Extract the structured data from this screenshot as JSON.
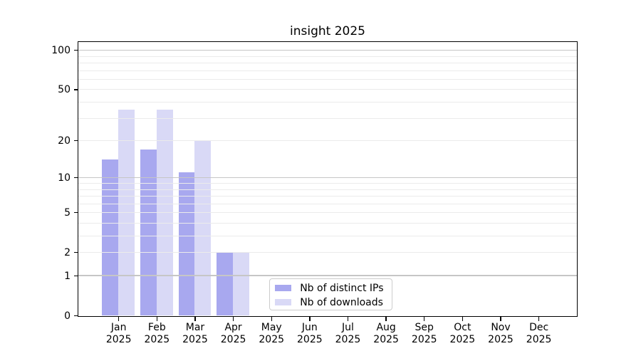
{
  "chart_data": {
    "type": "bar",
    "title": "insight 2025",
    "months": [
      "Jan",
      "Feb",
      "Mar",
      "Apr",
      "May",
      "Jun",
      "Jul",
      "Aug",
      "Sep",
      "Oct",
      "Nov",
      "Dec"
    ],
    "year_label": "2025",
    "series": [
      {
        "name": "Nb of distinct IPs",
        "color": "#a8a8ef",
        "values": [
          14,
          17,
          11,
          2,
          0,
          0,
          0,
          0,
          0,
          0,
          0,
          0
        ]
      },
      {
        "name": "Nb of downloads",
        "color": "#d9d9f6",
        "values": [
          35,
          35,
          20,
          2,
          0,
          0,
          0,
          0,
          0,
          0,
          0,
          0
        ]
      }
    ],
    "yscale": "log10(value+1)",
    "ylim": [
      0,
      115
    ],
    "y_tick_labels": [
      0,
      1,
      2,
      5,
      10,
      20,
      50,
      100
    ],
    "y_major_gridlines": [
      1,
      10,
      100
    ],
    "y_minor_gridlines": [
      2,
      3,
      4,
      5,
      6,
      7,
      8,
      9,
      20,
      30,
      40,
      50,
      60,
      70,
      80,
      90
    ],
    "legend": {
      "entries": [
        "Nb of distinct IPs",
        "Nb of downloads"
      ],
      "location": "inside-lower-center"
    },
    "grid": "on",
    "colors": {
      "bar_distinct_ips": "#a8a8ef",
      "bar_downloads": "#d9d9f6",
      "grid_major": "#c6c6c6",
      "grid_minor": "#ebebeb",
      "axis": "#000000",
      "background": "#ffffff"
    }
  }
}
